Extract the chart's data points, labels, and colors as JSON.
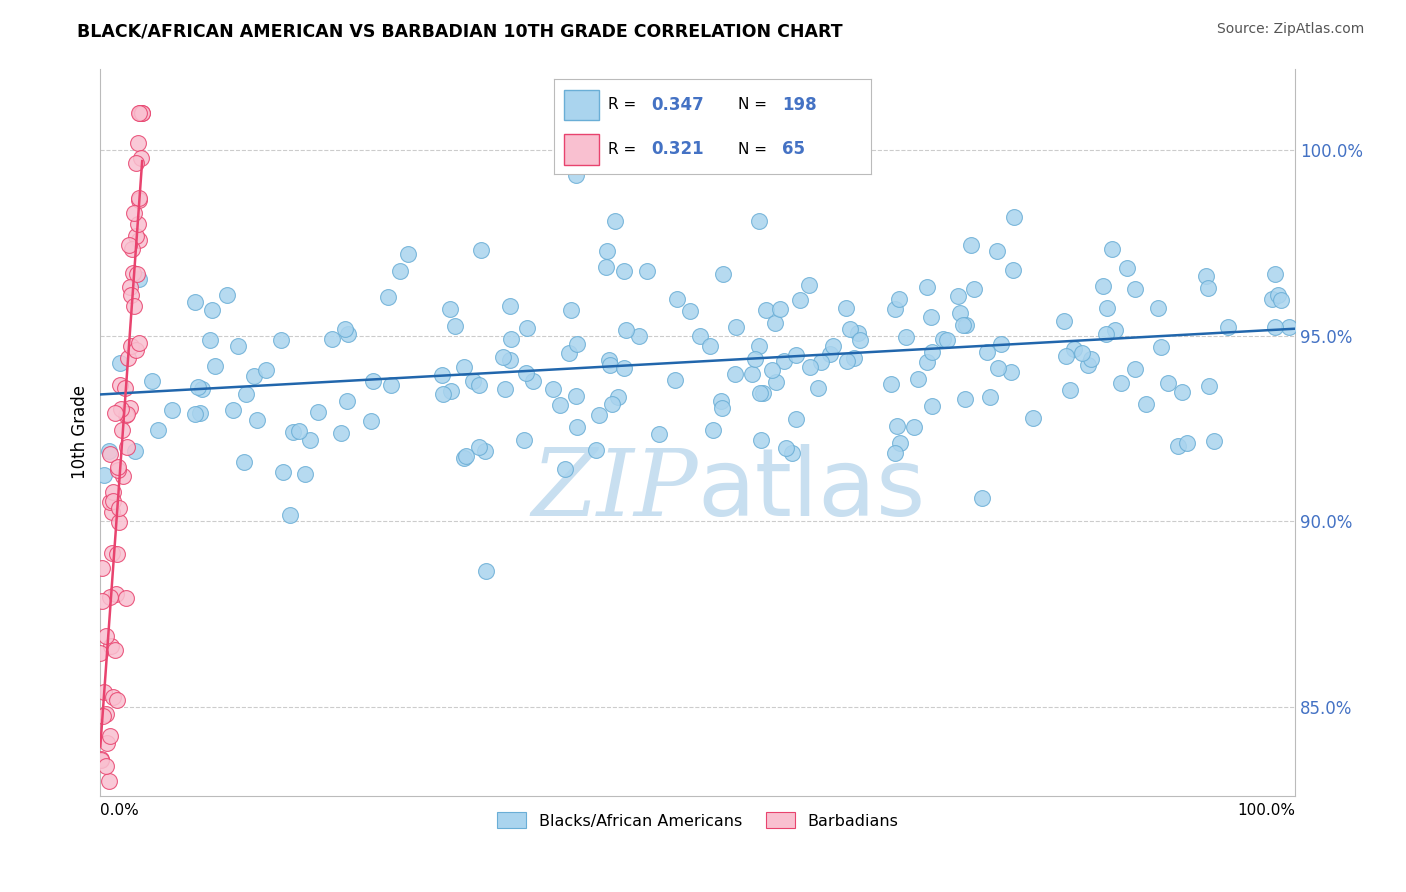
{
  "title": "BLACK/AFRICAN AMERICAN VS BARBADIAN 10TH GRADE CORRELATION CHART",
  "source_text": "Source: ZipAtlas.com",
  "ylabel": "10th Grade",
  "y_ticks": [
    0.85,
    0.9,
    0.95,
    1.0
  ],
  "y_tick_labels": [
    "85.0%",
    "90.0%",
    "95.0%",
    "100.0%"
  ],
  "x_range": [
    0.0,
    1.0
  ],
  "y_range": [
    0.826,
    1.022
  ],
  "legend_R1": "0.347",
  "legend_N1": "198",
  "legend_R2": "0.321",
  "legend_N2": "65",
  "blue_line_color": "#2166ac",
  "pink_line_color": "#e8436e",
  "blue_scatter_face": "#aad4ee",
  "blue_scatter_edge": "#6aaed6",
  "pink_scatter_face": "#f9c0d0",
  "pink_scatter_edge": "#e8436e",
  "legend_blue_face": "#aad4ee",
  "legend_blue_edge": "#6aaed6",
  "legend_pink_face": "#f9c0d0",
  "legend_pink_edge": "#e8436e",
  "watermark_zip": "ZIP",
  "watermark_atlas": "atlas",
  "watermark_color": "#c8dff0",
  "background_color": "#ffffff",
  "grid_color": "#cccccc",
  "ytick_color": "#4472c4",
  "title_color": "#000000",
  "source_color": "#555555",
  "ylabel_color": "#000000"
}
